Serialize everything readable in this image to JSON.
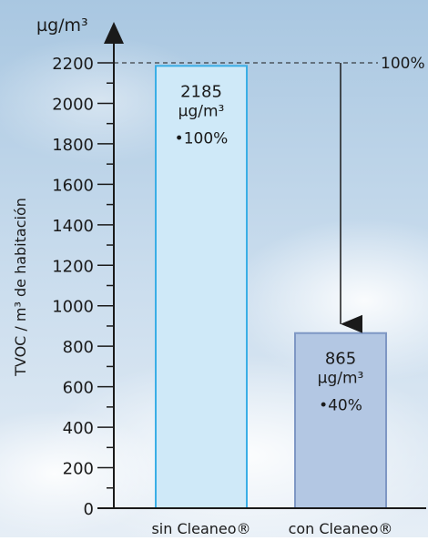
{
  "chart_data": {
    "type": "bar",
    "ylabel": "TVOC / m³ de habitación",
    "yunit": "µg/m³",
    "ylim": [
      0,
      2200
    ],
    "yticks": [
      0,
      200,
      400,
      600,
      800,
      1000,
      1200,
      1400,
      1600,
      1800,
      2000,
      2200
    ],
    "categories": [
      "sin Cleaneo®",
      "con Cleaneo®"
    ],
    "values": [
      2185,
      865
    ],
    "value_labels": [
      "2185",
      "865"
    ],
    "unit_labels": [
      "µg/m³",
      "µg/m³"
    ],
    "percent_labels": [
      "•100%",
      "•40%"
    ],
    "reference_line": {
      "value": 2200,
      "label": "100%"
    },
    "bar_fill_colors": [
      "#cfe9f8",
      "#b3c7e3"
    ],
    "bar_stroke_colors": [
      "#3aaee6",
      "#7e97c4"
    ],
    "grid": false,
    "legend": "none"
  }
}
